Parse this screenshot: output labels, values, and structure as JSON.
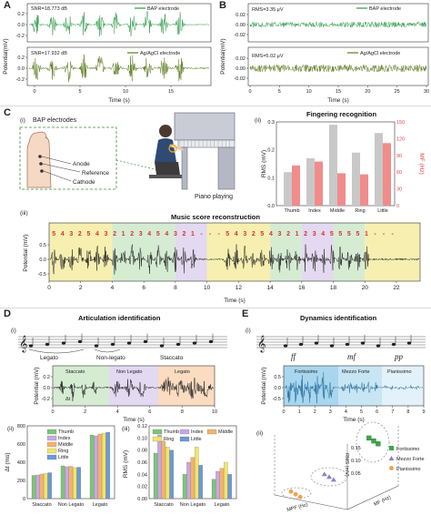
{
  "panels": {
    "A": {
      "letter": "A",
      "xlabel": "Time (s)",
      "ylabel": "Potential(mV)",
      "top": {
        "stat": "SNR=18.773 dB",
        "legend": "BAP electrode",
        "color": "#2e9a48"
      },
      "bottom": {
        "stat": "SNR=17.932 dB",
        "legend": "Ag/AgCl electrode",
        "color": "#5b7a1f"
      },
      "xticks": [
        "0",
        "5",
        "10",
        "15"
      ],
      "yticks": [
        "0.2",
        "0.0",
        "-0.2"
      ]
    },
    "B": {
      "letter": "B",
      "xlabel": "Time (s)",
      "ylabel": "Potential(mV)",
      "top": {
        "stat": "RMS=3.35 μV",
        "legend": "BAP electrode",
        "color": "#2e9a48"
      },
      "bottom": {
        "stat": "RMS=5.02 μV",
        "legend": "Ag/AgCl electrode",
        "color": "#5b7a1f"
      },
      "xticks": [
        "0",
        "5",
        "10",
        "15",
        "20",
        "25",
        "30"
      ],
      "yticks": [
        "0.02",
        "0.00",
        "-0.02"
      ]
    },
    "C": {
      "letter": "C",
      "i_label": "(i)",
      "bap_title": "BAP electrodes",
      "anode": "Anode",
      "reference": "Reference",
      "cathode": "Cathode",
      "piano": "Piano playing",
      "ii_label": "(ii)",
      "finger_title": "Fingering recognition",
      "finger_ylabel_left": "RMS (mV)",
      "finger_ylabel_right": "MF (Hz)",
      "fingers": [
        "Thumb",
        "Index",
        "Middle",
        "Ring",
        "Little"
      ],
      "finger_left_ticks": [
        "0.0",
        "0.1",
        "0.2",
        "0.3"
      ],
      "finger_right_ticks": [
        "0",
        "30",
        "60",
        "90",
        "120",
        "150"
      ],
      "iii_label": "(iii)",
      "score_title": "Music score reconstruction",
      "score_ylabel": "Potential (mV)",
      "score_xlabel": "Time (s)",
      "score_xticks": [
        "0",
        "2",
        "4",
        "6",
        "8",
        "10",
        "12",
        "14",
        "16",
        "18",
        "20",
        "22"
      ],
      "score_yticks": [
        "0.5",
        "0.0",
        "-0.5"
      ],
      "score_notes": [
        "5",
        "4",
        "3",
        "2",
        "5",
        "4",
        "3",
        "2",
        "1",
        "2",
        "3",
        "4",
        "5",
        "4",
        "3",
        "2",
        "1",
        "-",
        "-",
        "-",
        "5",
        "4",
        "3",
        "2",
        "5",
        "4",
        "3",
        "2",
        "1",
        "2",
        "3",
        "4",
        "5",
        "5",
        "5",
        "5",
        "1",
        "-",
        "-",
        "-"
      ]
    },
    "D": {
      "letter": "D",
      "title": "Articulation identification",
      "i_label": "(i)",
      "legato": "Legato",
      "nonlegato": "Non-legato",
      "staccato": "Staccato",
      "seg_staccato": "Staccato",
      "seg_nonlegato": "Non Legato",
      "seg_legato": "Legato",
      "ylabel": "Potential (mV)",
      "xlabel": "Time (s)",
      "xticks": [
        "0",
        "2",
        "4",
        "6",
        "8",
        "10"
      ],
      "yticks": [
        "0.2",
        "0.0",
        "-0.2"
      ],
      "delta_t": "Δt",
      "ii_label": "(ii)",
      "ii_ylabel": "Δt (ms)",
      "ii_yticks": [
        "0",
        "200",
        "400",
        "600",
        "800"
      ],
      "iii_label": "(iii)",
      "iii_ylabel": "RMS (mV)",
      "iii_yticks": [
        "0.00",
        "0.02",
        "0.04",
        "0.06",
        "0.08",
        "0.10",
        "0.12"
      ],
      "categories": [
        "Staccato",
        "Non Legato",
        "Legato"
      ],
      "legend": [
        "Thumb",
        "Index",
        "Middle",
        "Ring",
        "Little"
      ]
    },
    "E": {
      "letter": "E",
      "title": "Dynamics identification",
      "i_label": "(i)",
      "dyn_marks": [
        "ff",
        "mf",
        "pp"
      ],
      "seg_ff": "Fortissimo",
      "seg_mf": "Mezzo Forte",
      "seg_pp": "Pianissimo",
      "ylabel": "Potential (mV)",
      "xlabel": "Time (s)",
      "xticks": [
        "0",
        "1",
        "2",
        "3",
        "4",
        "5",
        "6",
        "7",
        "8",
        "9"
      ],
      "yticks": [
        "0.5",
        "0.0",
        "-0.5"
      ],
      "ii_label": "(ii)",
      "axis_rms": "RMS (mV)",
      "axis_mpf": "MPF (Hz)",
      "axis_mf": "MF (Hz)",
      "legend": [
        "Fortissimo",
        "Mezzo Forte",
        "Pianissimo"
      ],
      "ztick_labels": [
        "0.15",
        "0.10",
        "0.05"
      ]
    }
  },
  "chart_data": [
    {
      "type": "line",
      "id": "A-top",
      "series": [
        {
          "name": "BAP electrode"
        }
      ],
      "xlim": [
        0,
        17
      ],
      "ylim": [
        -0.3,
        0.3
      ]
    },
    {
      "type": "line",
      "id": "A-bottom",
      "series": [
        {
          "name": "Ag/AgCl electrode"
        }
      ],
      "xlim": [
        0,
        17
      ],
      "ylim": [
        -0.3,
        0.3
      ]
    },
    {
      "type": "line",
      "id": "B-top",
      "series": [
        {
          "name": "BAP electrode"
        }
      ],
      "xlim": [
        0,
        30
      ],
      "ylim": [
        -0.02,
        0.02
      ]
    },
    {
      "type": "line",
      "id": "B-bottom",
      "series": [
        {
          "name": "Ag/AgCl electrode"
        }
      ],
      "xlim": [
        0,
        30
      ],
      "ylim": [
        -0.02,
        0.02
      ]
    },
    {
      "type": "bar",
      "id": "C-ii",
      "categories": [
        "Thumb",
        "Index",
        "Middle",
        "Ring",
        "Little"
      ],
      "series": [
        {
          "name": "RMS (mV)",
          "values": [
            0.12,
            0.17,
            0.29,
            0.19,
            0.26
          ]
        },
        {
          "name": "MF (Hz)",
          "values": [
            72,
            79,
            58,
            56,
            112
          ]
        }
      ],
      "ylim": [
        0,
        0.3
      ],
      "y2lim": [
        0,
        150
      ]
    },
    {
      "type": "bar",
      "id": "D-ii",
      "categories": [
        "Staccato",
        "Non Legato",
        "Legato"
      ],
      "series": [
        {
          "name": "Thumb",
          "values": [
            255,
            360,
            700
          ]
        },
        {
          "name": "Index",
          "values": [
            260,
            350,
            690
          ]
        },
        {
          "name": "Middle",
          "values": [
            270,
            355,
            710
          ]
        },
        {
          "name": "Ring",
          "values": [
            275,
            340,
            720
          ]
        },
        {
          "name": "Little",
          "values": [
            285,
            345,
            730
          ]
        }
      ],
      "ylim": [
        0,
        800
      ]
    },
    {
      "type": "bar",
      "id": "D-iii",
      "categories": [
        "Staccato",
        "Non Legato",
        "Legato"
      ],
      "series": [
        {
          "name": "Thumb",
          "values": [
            0.075,
            0.04,
            0.032
          ]
        },
        {
          "name": "Index",
          "values": [
            0.105,
            0.06,
            0.045
          ]
        },
        {
          "name": "Middle",
          "values": [
            0.095,
            0.068,
            0.05
          ]
        },
        {
          "name": "Ring",
          "values": [
            0.085,
            0.085,
            0.06
          ]
        },
        {
          "name": "Little",
          "values": [
            0.08,
            0.055,
            0.04
          ]
        }
      ],
      "ylim": [
        0,
        0.12
      ]
    },
    {
      "type": "scatter",
      "id": "E-ii",
      "series": [
        {
          "name": "Fortissimo",
          "values": [
            [
              0.7,
              0.55,
              0.16
            ],
            [
              0.75,
              0.6,
              0.15
            ],
            [
              0.72,
              0.58,
              0.14
            ]
          ]
        },
        {
          "name": "Mezzo Forte",
          "values": [
            [
              0.45,
              0.4,
              0.07
            ],
            [
              0.5,
              0.42,
              0.065
            ],
            [
              0.48,
              0.38,
              0.06
            ]
          ]
        },
        {
          "name": "Pianissimo",
          "values": [
            [
              0.25,
              0.3,
              0.02
            ],
            [
              0.28,
              0.32,
              0.018
            ],
            [
              0.3,
              0.28,
              0.02
            ]
          ]
        }
      ]
    }
  ],
  "colors": {
    "bap": "#2e9a48",
    "agcl": "#5b7a1f",
    "rms_bar": "#c8c8c8",
    "mf_bar": "#f28b8b",
    "note_red": "#d93030",
    "seg_yellow": "#f6efb0",
    "seg_green": "#d5ecd3",
    "seg_purple": "#e3d9f0",
    "seg_orange": "#fbdcc1",
    "seg_blue1": "#a8d6ee",
    "seg_blue2": "#c8e5f4",
    "seg_blue3": "#e2f1fa",
    "thumb": "#7cc576",
    "index": "#c9a8e0",
    "middle": "#f4b36b",
    "ring": "#f2e56b",
    "little": "#6a9bd8",
    "ff": "#3aa64a",
    "mf": "#8c7fc9",
    "pp": "#f0a04b"
  }
}
